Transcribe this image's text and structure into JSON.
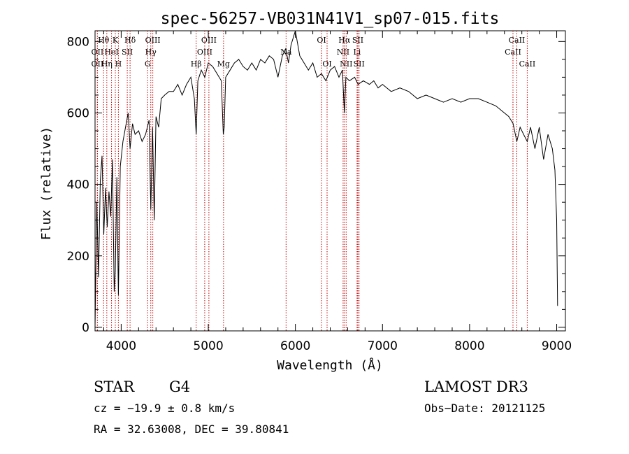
{
  "chart_data": {
    "type": "line",
    "title": "spec-56257-VB031N41V1_sp07-015.fits",
    "xlabel": "Wavelength (Å)",
    "ylabel": "Flux (relative)",
    "xlim": [
      3700,
      9100
    ],
    "ylim": [
      -10,
      830
    ],
    "x_ticks": [
      4000,
      5000,
      6000,
      7000,
      8000,
      9000
    ],
    "y_ticks": [
      0,
      200,
      400,
      600,
      800
    ],
    "x_tick_labels": [
      "4000",
      "5000",
      "6000",
      "7000",
      "8000",
      "9000"
    ],
    "y_tick_labels": [
      "0",
      "200",
      "400",
      "600",
      "800"
    ],
    "series": [
      {
        "name": "flux",
        "x": [
          3700,
          3720,
          3740,
          3760,
          3780,
          3800,
          3820,
          3840,
          3860,
          3880,
          3900,
          3920,
          3933,
          3950,
          3968,
          3990,
          4020,
          4050,
          4080,
          4102,
          4130,
          4160,
          4200,
          4240,
          4280,
          4320,
          4340,
          4360,
          4380,
          4400,
          4430,
          4460,
          4500,
          4550,
          4600,
          4650,
          4700,
          4750,
          4800,
          4840,
          4861,
          4880,
          4920,
          4960,
          5000,
          5050,
          5100,
          5150,
          5172,
          5183,
          5200,
          5250,
          5300,
          5350,
          5400,
          5450,
          5500,
          5550,
          5600,
          5650,
          5700,
          5750,
          5800,
          5850,
          5890,
          5920,
          5950,
          6000,
          6050,
          6100,
          6150,
          6200,
          6250,
          6300,
          6350,
          6400,
          6450,
          6500,
          6540,
          6563,
          6580,
          6620,
          6680,
          6720,
          6780,
          6850,
          6900,
          6950,
          7000,
          7100,
          7200,
          7300,
          7400,
          7500,
          7600,
          7700,
          7800,
          7900,
          8000,
          8100,
          8200,
          8300,
          8400,
          8450,
          8500,
          8542,
          8580,
          8620,
          8662,
          8700,
          8750,
          8800,
          8850,
          8900,
          8950,
          8980,
          9000,
          9010
        ],
        "y": [
          0,
          350,
          140,
          410,
          480,
          260,
          390,
          280,
          380,
          310,
          470,
          100,
          160,
          420,
          90,
          450,
          520,
          560,
          600,
          500,
          570,
          540,
          550,
          520,
          540,
          580,
          330,
          560,
          300,
          590,
          560,
          640,
          650,
          660,
          660,
          680,
          650,
          680,
          700,
          640,
          540,
          690,
          720,
          700,
          740,
          730,
          710,
          690,
          540,
          560,
          700,
          720,
          740,
          750,
          730,
          720,
          740,
          720,
          750,
          740,
          760,
          750,
          700,
          760,
          780,
          740,
          790,
          830,
          760,
          740,
          720,
          740,
          700,
          710,
          690,
          720,
          730,
          700,
          720,
          600,
          700,
          690,
          700,
          680,
          690,
          680,
          690,
          670,
          680,
          660,
          670,
          660,
          640,
          650,
          640,
          630,
          640,
          630,
          640,
          640,
          630,
          620,
          600,
          590,
          570,
          520,
          560,
          540,
          520,
          560,
          500,
          560,
          470,
          540,
          500,
          440,
          300,
          60
        ]
      }
    ],
    "spectral_lines": [
      {
        "name": "OII",
        "wavelength": 3727,
        "row": 2
      },
      {
        "name": "Hθ",
        "wavelength": 3798,
        "row": 1
      },
      {
        "name": "OII",
        "wavelength": 3727,
        "row": 3
      },
      {
        "name": "HeI",
        "wavelength": 3889,
        "row": 2
      },
      {
        "name": "K",
        "wavelength": 3933,
        "row": 1
      },
      {
        "name": "Hη",
        "wavelength": 3835,
        "row": 3
      },
      {
        "name": "H",
        "wavelength": 3968,
        "row": 3
      },
      {
        "name": "SII",
        "wavelength": 4070,
        "row": 2
      },
      {
        "name": "Hδ",
        "wavelength": 4102,
        "row": 1
      },
      {
        "name": "OIII",
        "wavelength": 4363,
        "row": 1
      },
      {
        "name": "Hγ",
        "wavelength": 4340,
        "row": 2
      },
      {
        "name": "G",
        "wavelength": 4304,
        "row": 3
      },
      {
        "name": "Hβ",
        "wavelength": 4861,
        "row": 3
      },
      {
        "name": "OIII",
        "wavelength": 4959,
        "row": 2
      },
      {
        "name": "OIII",
        "wavelength": 5007,
        "row": 1
      },
      {
        "name": "Mg",
        "wavelength": 5175,
        "row": 3
      },
      {
        "name": "Na",
        "wavelength": 5893,
        "row": 2
      },
      {
        "name": "OI",
        "wavelength": 6300,
        "row": 1
      },
      {
        "name": "OI",
        "wavelength": 6364,
        "row": 3
      },
      {
        "name": "Hα",
        "wavelength": 6563,
        "row": 1
      },
      {
        "name": "NII",
        "wavelength": 6548,
        "row": 2
      },
      {
        "name": "NII",
        "wavelength": 6583,
        "row": 3
      },
      {
        "name": "SII",
        "wavelength": 6717,
        "row": 1
      },
      {
        "name": "Li",
        "wavelength": 6708,
        "row": 2
      },
      {
        "name": "SII",
        "wavelength": 6731,
        "row": 3
      },
      {
        "name": "CaII",
        "wavelength": 8542,
        "row": 1
      },
      {
        "name": "CaII",
        "wavelength": 8498,
        "row": 2
      },
      {
        "name": "CaII",
        "wavelength": 8662,
        "row": 3
      }
    ]
  },
  "info": {
    "class": "STAR",
    "subclass": "G4",
    "survey": "LAMOST DR3",
    "cz": "cz = −19.9 ± 0.8 km/s",
    "obs_date": "Obs−Date: 20121125",
    "radec": "RA =  32.63008, DEC =  39.80841"
  }
}
